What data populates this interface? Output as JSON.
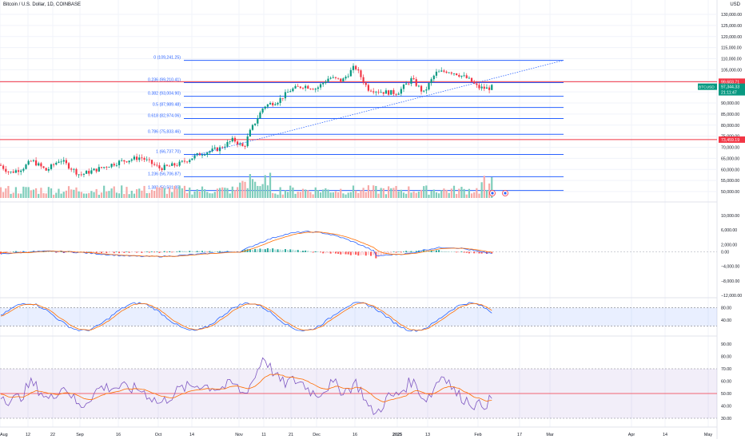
{
  "header": {
    "symbol_title": "Bitcoin / U.S. Dollar, 1D, COINBASE",
    "currency": "USD"
  },
  "price_scale": {
    "ticks": [
      "130,000.00",
      "125,000.00",
      "120,000.00",
      "115,000.00",
      "110,000.00",
      "105,000.00",
      "100,000.00",
      "95,000.00",
      "90,000.00",
      "85,000.00",
      "80,000.00",
      "75,000.00",
      "70,000.00",
      "65,000.00",
      "60,000.00",
      "55,000.00",
      "50,000.00"
    ],
    "tick_values": [
      130000,
      125000,
      120000,
      115000,
      110000,
      105000,
      100000,
      95000,
      90000,
      85000,
      80000,
      75000,
      70000,
      65000,
      60000,
      55000,
      50000
    ],
    "badges": [
      {
        "label": "99,603.71",
        "value": 99603.71,
        "color": "#f23645"
      },
      {
        "label": "73,459.19",
        "value": 73459.19,
        "color": "#f23645"
      }
    ],
    "last_price_badge": {
      "symbol": "BTCUSD",
      "price": "97,344.33",
      "countdown": "21:11:47",
      "color": "#089981"
    }
  },
  "fibonacci": {
    "levels": [
      {
        "label": "0 (109,241.25)",
        "value": 109241.25
      },
      {
        "label": "0.236 (99,210.41)",
        "value": 99210.41
      },
      {
        "label": "0.382 (93,004.90)",
        "value": 93004.9
      },
      {
        "label": "0.5 (87,989.48)",
        "value": 87989.48
      },
      {
        "label": "0.618 (82,974.06)",
        "value": 82974.06
      },
      {
        "label": "0.786 (75,833.46)",
        "value": 75833.46
      },
      {
        "label": "1 (66,737.70)",
        "value": 66737.7
      },
      {
        "label": "1.236 (56,706.87)",
        "value": 56706.87
      },
      {
        "label": "1.382 (50,501.35)",
        "value": 50501.35
      }
    ],
    "color": "#2962ff"
  },
  "horizontal_lines": [
    {
      "value": 99603.71,
      "color": "#f23645"
    },
    {
      "value": 73459.19,
      "color": "#f23645"
    }
  ],
  "macd_pane": {
    "ticks": [
      "10,000.00",
      "6,000.00",
      "2,000.00",
      "0.00",
      "−4,000.00",
      "−8,000.00",
      "−12,000.00"
    ],
    "tick_values": [
      10000,
      6000,
      2000,
      0,
      -4000,
      -8000,
      -12000
    ],
    "macd_color": "#2962ff",
    "signal_color": "#ff6d00"
  },
  "stoch_pane": {
    "ticks": [
      "80.00",
      "40.00"
    ],
    "tick_values": [
      80,
      40
    ],
    "band": [
      80,
      20
    ],
    "k_color": "#2962ff",
    "d_color": "#ff6d00"
  },
  "rsi_pane": {
    "ticks": [
      "90.00",
      "80.00",
      "70.00",
      "60.00",
      "50.00",
      "40.00",
      "30.00"
    ],
    "tick_values": [
      90,
      80,
      70,
      60,
      50,
      40,
      30
    ],
    "band": [
      70,
      30
    ],
    "mid": 50,
    "rsi_color": "#7e57c2",
    "ma_color": "#ff6d00",
    "mid_color": "#f23645"
  },
  "time_axis": {
    "labels": [
      "Aug",
      "12",
      "22",
      "Sep",
      "16",
      "Oct",
      "14",
      "Nov",
      "11",
      "21",
      "Dec",
      "16",
      "2025",
      "13",
      "Feb",
      "17",
      "Mar",
      "Apr",
      "14",
      "May"
    ]
  },
  "colors": {
    "up": "#089981",
    "down": "#f23645",
    "up_vol": "#7fcdbb",
    "down_vol": "#f7a9a7"
  }
}
